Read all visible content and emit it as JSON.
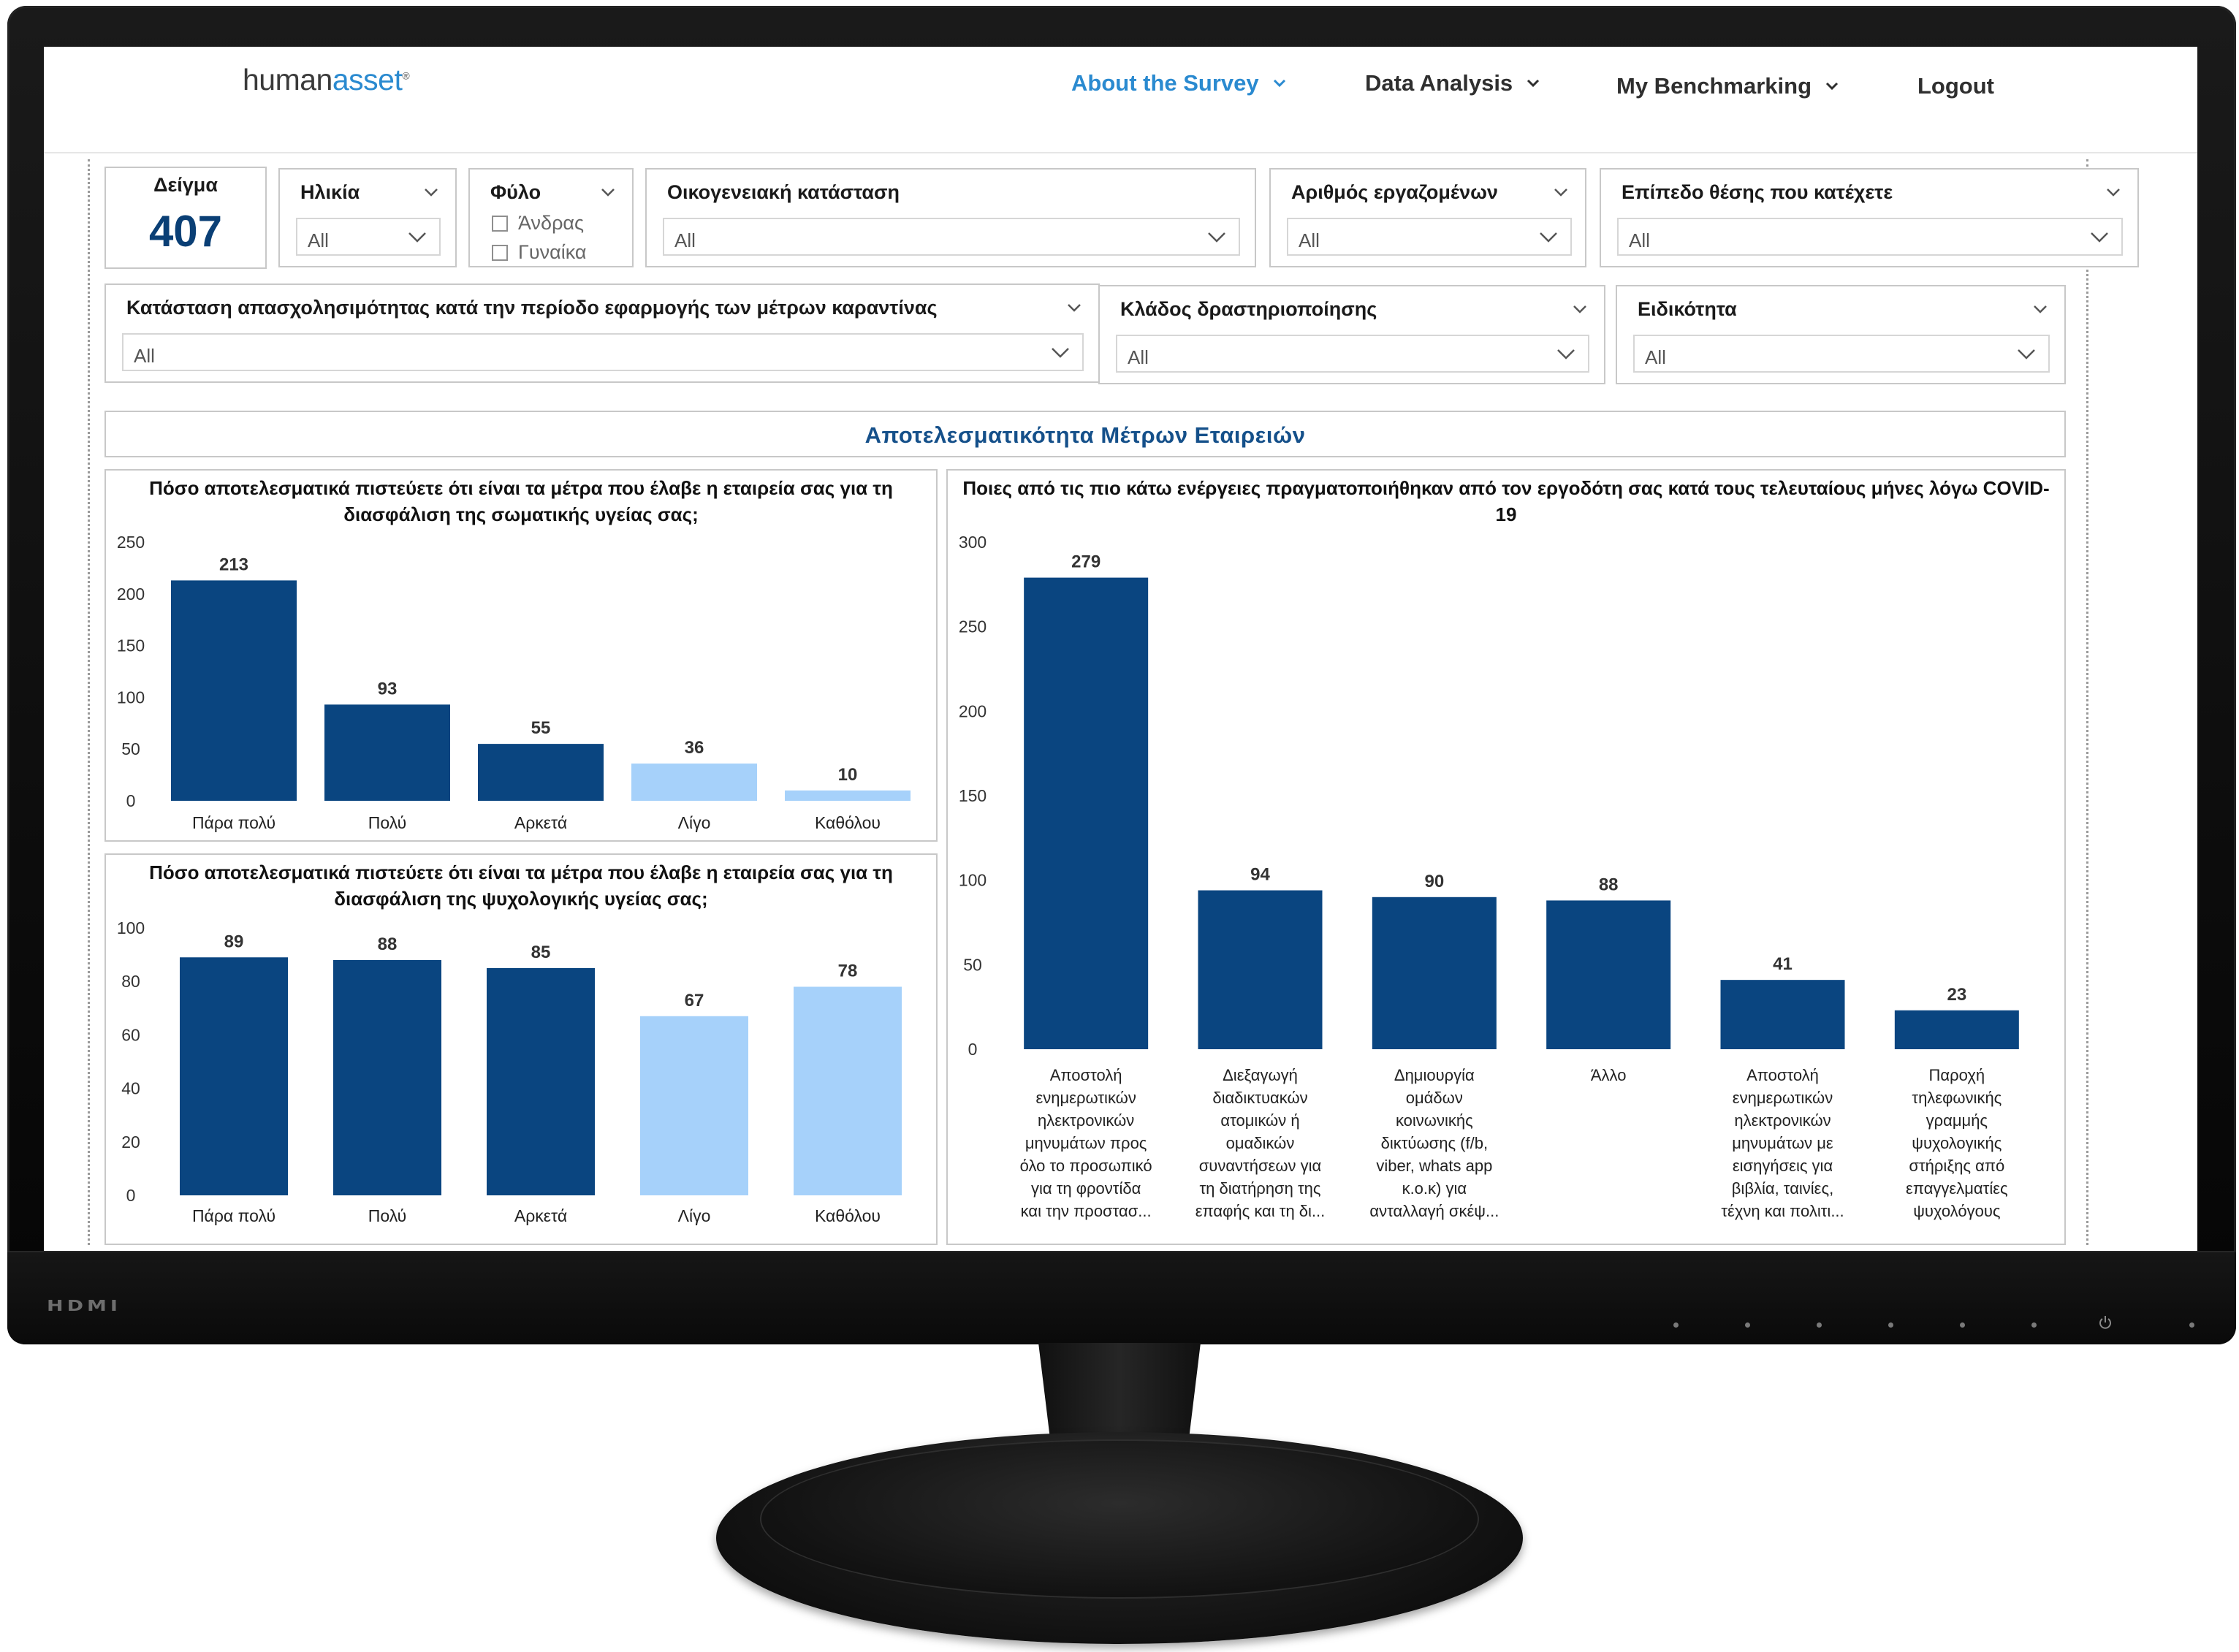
{
  "nav": {
    "logo_main": "human",
    "logo_accent": "asset",
    "logo_mark": "®",
    "items": [
      {
        "label": "About the Survey",
        "active": true
      },
      {
        "label": "Data Analysis",
        "active": false
      },
      {
        "label": "My Benchmarking",
        "active": false
      },
      {
        "label": "Logout",
        "active": false
      }
    ]
  },
  "colors": {
    "accent_blue": "#2a8ad0",
    "bar_dark": "#0a4580",
    "bar_light": "#a6d1fa",
    "kpi": "#0a3f75"
  },
  "kpi": {
    "label": "Δείγμα",
    "value": "407"
  },
  "filters": {
    "age": {
      "title": "Ηλικία",
      "value": "All"
    },
    "gender": {
      "title": "Φύλο",
      "options": [
        "Άνδρας",
        "Γυναίκα"
      ]
    },
    "marital": {
      "title": "Οικογενειακή κατάσταση",
      "value": "All"
    },
    "employees": {
      "title": "Αριθμός εργαζομένων",
      "value": "All"
    },
    "position": {
      "title": "Επίπεδο θέσης που κατέχετε",
      "value": "All"
    },
    "employment": {
      "title": "Κατάσταση απασχολησιμότητας κατά την περίοδο εφαρμογής των μέτρων καραντίνας",
      "value": "All"
    },
    "sector": {
      "title": "Κλάδος δραστηριοποίησης",
      "value": "All"
    },
    "specialty": {
      "title": "Ειδικότητα",
      "value": "All"
    }
  },
  "section_title": "Αποτελεσματικότητα Μέτρων Εταιρειών",
  "hdmi_label": "HDMI",
  "chart_data": [
    {
      "type": "bar",
      "title": "Πόσο αποτελεσματικά πιστεύετε ότι είναι τα μέτρα που έλαβε η εταιρεία σας για τη διασφάλιση της σωματικής υγείας σας;",
      "categories": [
        "Πάρα πολύ",
        "Πολύ",
        "Αρκετά",
        "Λίγο",
        "Καθόλου"
      ],
      "values": [
        213,
        93,
        55,
        36,
        10
      ],
      "bar_colors": [
        "#0a4580",
        "#0a4580",
        "#0a4580",
        "#a6d1fa",
        "#a6d1fa"
      ],
      "yticks": [
        0,
        50,
        100,
        150,
        200,
        250
      ],
      "ylim": [
        0,
        250
      ],
      "grid": true
    },
    {
      "type": "bar",
      "title": "Πόσο αποτελεσματικά πιστεύετε ότι είναι τα μέτρα που έλαβε η εταιρεία σας για τη διασφάλιση της ψυχολογικής υγείας σας;",
      "categories": [
        "Πάρα πολύ",
        "Πολύ",
        "Αρκετά",
        "Λίγο",
        "Καθόλου"
      ],
      "values": [
        89,
        88,
        85,
        67,
        78
      ],
      "bar_colors": [
        "#0a4580",
        "#0a4580",
        "#0a4580",
        "#a6d1fa",
        "#a6d1fa"
      ],
      "yticks": [
        0,
        20,
        40,
        60,
        80,
        100
      ],
      "ylim": [
        0,
        100
      ],
      "grid": true
    },
    {
      "type": "bar",
      "title": "Ποιες από τις πιο κάτω ενέργειες πραγματοποιήθηκαν από τον εργοδότη σας κατά τους τελευταίους μήνες λόγω COVID-19",
      "categories": [
        "Αποστολή ενημερωτικών ηλεκτρονικών μηνυμάτων προς όλο το προσωπικό για τη φροντίδα και την προστασ...",
        "Διεξαγωγή διαδικτυακών ατομικών ή ομαδικών συναντήσεων για τη διατήρηση της επαφής και τη δι...",
        "Δημιουργία ομάδων κοινωνικής δικτύωσης (f/b, viber, whats app κ.ο.κ) για ανταλλαγή σκέψ...",
        "Άλλο",
        "Αποστολή ενημερωτικών ηλεκτρονικών μηνυμάτων με εισηγήσεις για βιβλία, ταινίες, τέχνη και πολιτι...",
        "Παροχή τηλεφωνικής γραμμής ψυχολογικής στήριξης από επαγγελματίες ψυχολόγους"
      ],
      "category_lines": [
        [
          "Αποστολή",
          "ενημερωτικών",
          "ηλεκτρονικών",
          "μηνυμάτων προς",
          "όλο το προσωπικό",
          "για τη φροντίδα",
          "και την προστασ..."
        ],
        [
          "Διεξαγωγή",
          "διαδικτυακών",
          "ατομικών ή",
          "ομαδικών",
          "συναντήσεων για",
          "τη διατήρηση της",
          "επαφής και τη δι..."
        ],
        [
          "Δημιουργία",
          "ομάδων",
          "κοινωνικής",
          "δικτύωσης (f/b,",
          "viber, whats app",
          "κ.ο.κ) για",
          "ανταλλαγή σκέψ..."
        ],
        [
          "Άλλο"
        ],
        [
          "Αποστολή",
          "ενημερωτικών",
          "ηλεκτρονικών",
          "μηνυμάτων με",
          "εισηγήσεις για",
          "βιβλία, ταινίες,",
          "τέχνη και πολιτι..."
        ],
        [
          "Παροχή",
          "τηλεφωνικής",
          "γραμμής",
          "ψυχολογικής",
          "στήριξης από",
          "επαγγελματίες",
          "ψυχολόγους"
        ]
      ],
      "values": [
        279,
        94,
        90,
        88,
        41,
        23
      ],
      "bar_colors": [
        "#0a4580",
        "#0a4580",
        "#0a4580",
        "#0a4580",
        "#0a4580",
        "#0a4580"
      ],
      "yticks": [
        0,
        50,
        100,
        150,
        200,
        250,
        300
      ],
      "ylim": [
        0,
        300
      ],
      "grid": true
    }
  ]
}
